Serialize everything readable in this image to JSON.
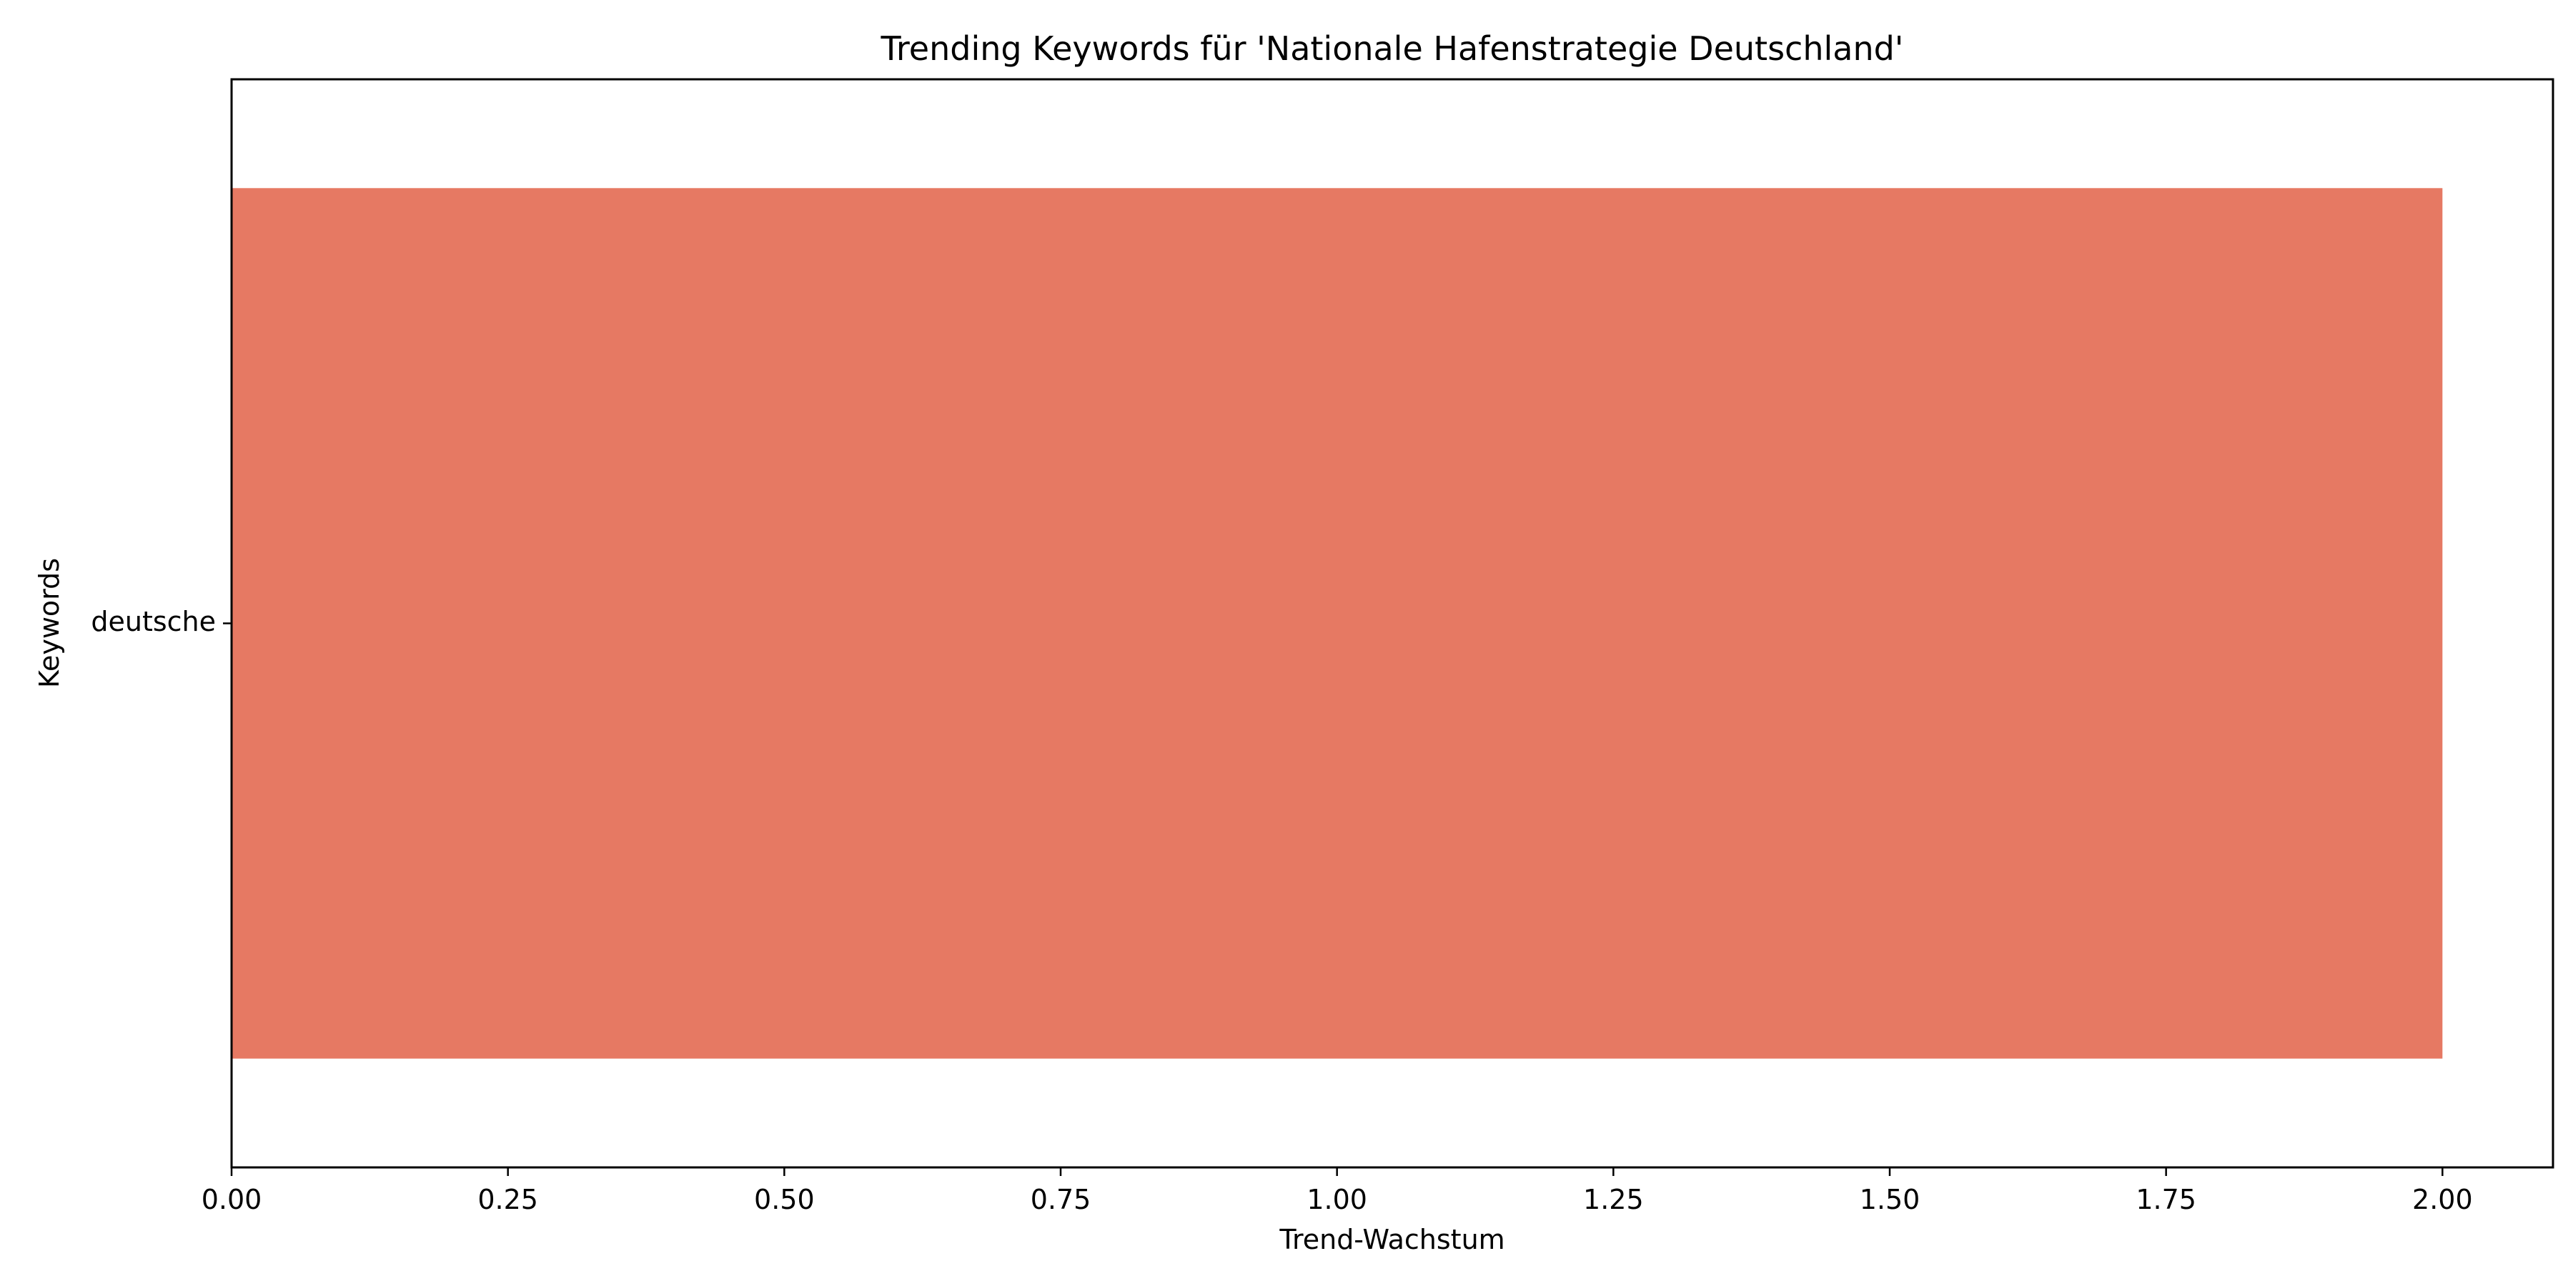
{
  "chart_data": {
    "type": "bar",
    "orientation": "horizontal",
    "title": "Trending Keywords für 'Nationale Hafenstrategie Deutschland'",
    "xlabel": "Trend-Wachstum",
    "ylabel": "Keywords",
    "categories": [
      "deutsche"
    ],
    "values": [
      2.0
    ],
    "xlim": [
      0,
      2.1
    ],
    "xticks": [
      "0.00",
      "0.25",
      "0.50",
      "0.75",
      "1.00",
      "1.25",
      "1.50",
      "1.75",
      "2.00"
    ],
    "grid": false,
    "legend": "none",
    "bar_color": "#e67963"
  }
}
